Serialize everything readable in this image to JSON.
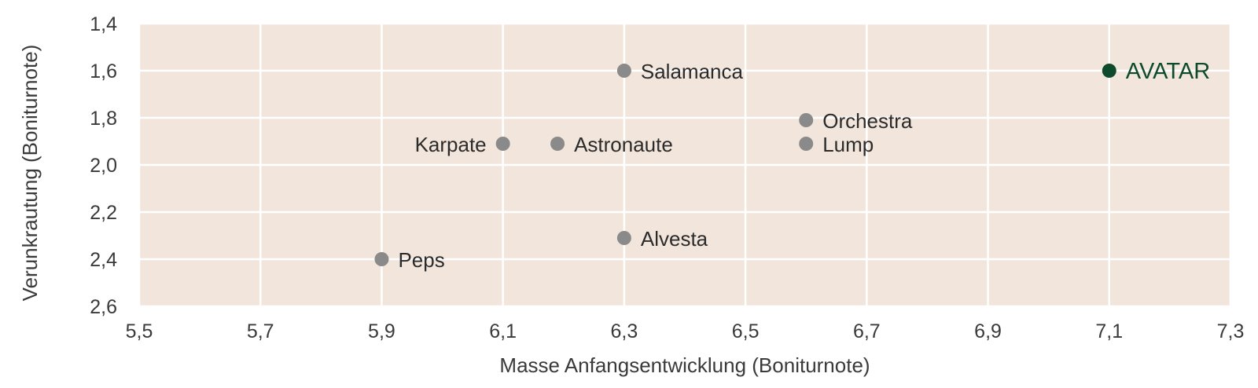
{
  "chart_data": {
    "type": "scatter",
    "xlabel": "Masse Anfangsentwicklung (Boniturnote)",
    "ylabel": "Verunkrautung (Boniturnote)",
    "xlim": [
      5.5,
      7.3
    ],
    "ylim": [
      1.4,
      2.6
    ],
    "y_inverted": true,
    "grid": true,
    "x_ticks": [
      "5,5",
      "5,7",
      "5,9",
      "6,1",
      "6,3",
      "6,5",
      "6,7",
      "6,9",
      "7,1",
      "7,3"
    ],
    "x_tick_values": [
      5.5,
      5.7,
      5.9,
      6.1,
      6.3,
      6.5,
      6.7,
      6.9,
      7.1,
      7.3
    ],
    "y_ticks": [
      "1,4",
      "1,6",
      "1,8",
      "2,0",
      "2,2",
      "2,4",
      "2,6"
    ],
    "y_tick_values": [
      1.4,
      1.6,
      1.8,
      2.0,
      2.2,
      2.4,
      2.6
    ],
    "points": [
      {
        "label": "Salamanca",
        "x": 6.3,
        "y": 1.6,
        "highlight": false
      },
      {
        "label": "AVATAR",
        "x": 7.1,
        "y": 1.6,
        "highlight": true
      },
      {
        "label": "Orchestra",
        "x": 6.6,
        "y": 1.81,
        "highlight": false
      },
      {
        "label": "Karpate",
        "x": 6.1,
        "y": 1.91,
        "highlight": false,
        "label_side": "left"
      },
      {
        "label": "Astronaute",
        "x": 6.19,
        "y": 1.91,
        "highlight": false
      },
      {
        "label": "Lump",
        "x": 6.6,
        "y": 1.91,
        "highlight": false
      },
      {
        "label": "Alvesta",
        "x": 6.3,
        "y": 2.31,
        "highlight": false
      },
      {
        "label": "Peps",
        "x": 5.9,
        "y": 2.4,
        "highlight": false
      }
    ],
    "colors": {
      "plot_background": "#f2e6dc",
      "grid": "#ffffff",
      "point": "#8a8a8a",
      "highlight": "#0e4a2c",
      "label": "#2b2b2b"
    }
  }
}
